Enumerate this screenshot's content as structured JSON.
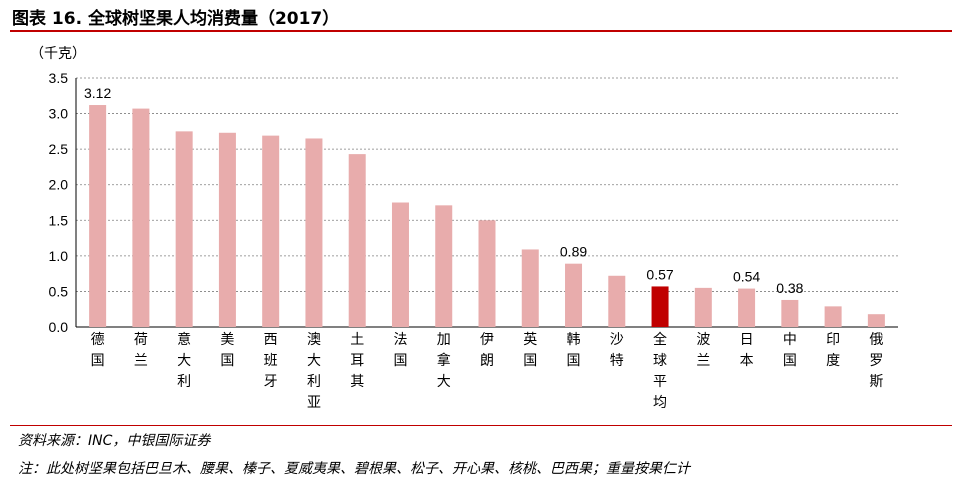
{
  "title": "图表 16. 全球树坚果人均消费量（2017）",
  "source": "资料来源：INC，中银国际证券",
  "note": "注：此处树坚果包括巴旦木、腰果、榛子、夏威夷果、碧根果、松子、开心果、核桃、巴西果；重量按果仁计",
  "colors": {
    "bar": "#e8acac",
    "highlight": "#c00000",
    "rule": "#c00000",
    "grid": "#7f7f7f"
  },
  "chart_data": {
    "type": "bar",
    "ylabel": "（千克）",
    "ylim": [
      0,
      3.5
    ],
    "yticks": [
      "0.0",
      "0.5",
      "1.0",
      "1.5",
      "2.0",
      "2.5",
      "3.0",
      "3.5"
    ],
    "grid": true,
    "categories": [
      "德国",
      "荷兰",
      "意大利",
      "美国",
      "西班牙",
      "澳大利亚",
      "土耳其",
      "法国",
      "加拿大",
      "伊朗",
      "英国",
      "韩国",
      "沙特",
      "全球平均",
      "波兰",
      "日本",
      "中国",
      "印度",
      "俄罗斯"
    ],
    "values": [
      3.12,
      3.07,
      2.75,
      2.73,
      2.69,
      2.65,
      2.43,
      1.75,
      1.71,
      1.5,
      1.09,
      0.89,
      0.72,
      0.57,
      0.55,
      0.54,
      0.38,
      0.29,
      0.18
    ],
    "highlight": "全球平均",
    "data_labels": [
      {
        "category": "德国",
        "text": "3.12"
      },
      {
        "category": "韩国",
        "text": "0.89"
      },
      {
        "category": "全球平均",
        "text": "0.57"
      },
      {
        "category": "日本",
        "text": "0.54"
      },
      {
        "category": "中国",
        "text": "0.38"
      }
    ]
  }
}
